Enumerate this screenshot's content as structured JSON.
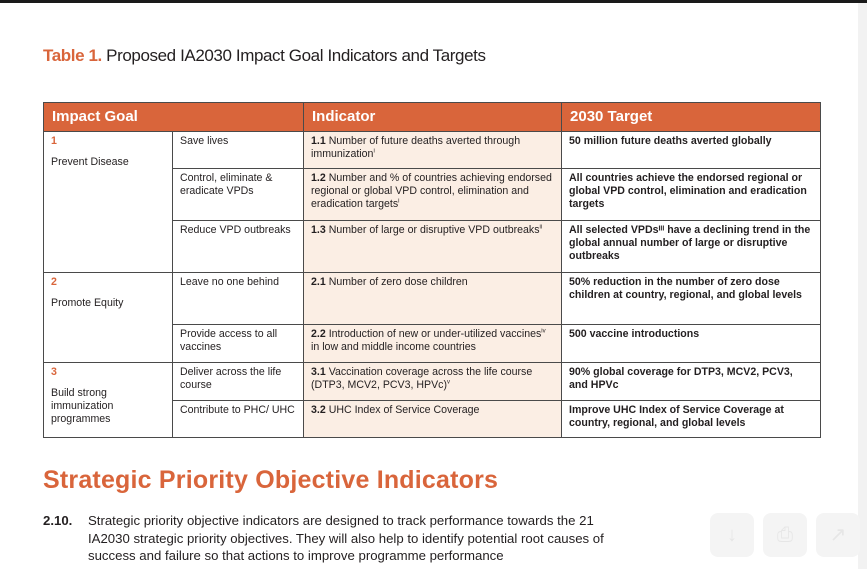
{
  "table_title": {
    "number": "Table 1.",
    "text": " Proposed IA2030 Impact Goal Indicators and Targets"
  },
  "table": {
    "headers": {
      "goal": "Impact Goal",
      "indicator": "Indicator",
      "target": "2030 Target"
    },
    "goals": [
      {
        "num": "1",
        "name": "Prevent Disease",
        "rows": [
          {
            "sub": "Save lives",
            "ind_num": "1.1",
            "ind_text": " Number of future deaths averted through immunization",
            "ind_sup": "i",
            "ind_after": "",
            "target": "50 million future deaths averted globally"
          },
          {
            "sub": "Control, eliminate & eradicate VPDs",
            "ind_num": "1.2",
            "ind_text": " Number and % of countries achieving endorsed regional or global VPD control, elimination and eradication targets",
            "ind_sup": "i",
            "ind_after": "",
            "target": "All countries achieve the endorsed regional or global VPD control, elimination and eradication targets"
          },
          {
            "sub": "Reduce VPD outbreaks",
            "ind_num": "1.3",
            "ind_text": " Number of large or disruptive VPD outbreaks",
            "ind_sup": "ii",
            "ind_after": "",
            "target": "All selected VPDsᴵᴵᴵ have a declining trend in the global annual number of large or disruptive outbreaks"
          }
        ]
      },
      {
        "num": "2",
        "name": "Promote Equity",
        "rows": [
          {
            "sub": "Leave no one behind",
            "ind_num": "2.1",
            "ind_text": " Number of zero dose children",
            "ind_sup": "",
            "ind_after": "",
            "target": "50% reduction in the number of zero dose children at country, regional, and global levels"
          },
          {
            "sub": "Provide access to all vaccines",
            "ind_num": "2.2",
            "ind_text": " Introduction of new or under-utilized vaccines",
            "ind_sup": "iv",
            "ind_after": " in low and middle income countries",
            "target": "500 vaccine introductions"
          }
        ]
      },
      {
        "num": "3",
        "name": "Build strong immunization programmes",
        "rows": [
          {
            "sub": "Deliver across the life course",
            "ind_num": "3.1",
            "ind_text": " Vaccination coverage across the life course (DTP3, MCV2, PCV3, HPVc)",
            "ind_sup": "v",
            "ind_after": "",
            "target": "90% global coverage for DTP3, MCV2, PCV3, and HPVc"
          },
          {
            "sub": "Contribute to PHC/ UHC",
            "ind_num": "3.2",
            "ind_text": " UHC Index of Service Coverage",
            "ind_sup": "",
            "ind_after": "",
            "target": "Improve UHC Index of Service Coverage at country, regional, and global levels"
          }
        ]
      }
    ]
  },
  "section_heading": "Strategic Priority Objective Indicators",
  "paragraph": {
    "num": "2.10.",
    "text": "Strategic priority objective indicators are designed to track performance towards the 21 IA2030 strategic priority objectives. They will also help to identify potential root causes of success and failure so that actions to improve programme performance"
  },
  "colors": {
    "accent": "#d9653b",
    "indicator_bg": "#fbeee4",
    "text": "#231f20"
  },
  "icons": [
    "download-icon",
    "print-icon",
    "share-icon"
  ]
}
